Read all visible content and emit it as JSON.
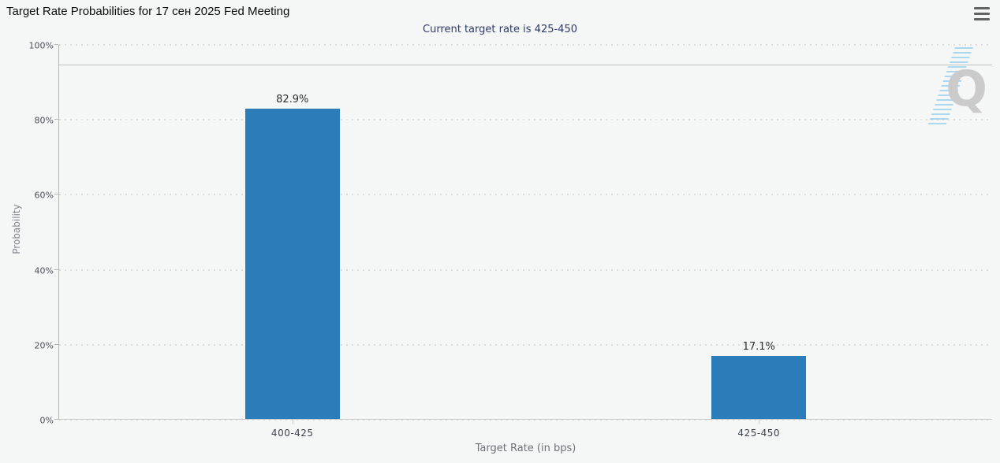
{
  "header": {
    "title": "Target Rate Probabilities for 17 сен 2025 Fed Meeting",
    "subtitle": "Current target rate is 425-450"
  },
  "toolbar": {
    "menu_icon": "hamburger-icon"
  },
  "watermark": {
    "letter": "Q"
  },
  "colors": {
    "bar": "#2a7db8",
    "subtitle_text": "#2c3a6d",
    "background": "#f5f6f6",
    "gridline": "#dcdcdc",
    "axis_line": "#b6b6b6",
    "watermark_q": "#cbcbcb",
    "watermark_stripes": "#84c7eb"
  },
  "chart_data": {
    "type": "bar",
    "title": "Target Rate Probabilities for 17 сен 2025 Fed Meeting",
    "subtitle": "Current target rate is 425-450",
    "categories": [
      "400-425",
      "425-450"
    ],
    "values": [
      82.9,
      17.1
    ],
    "value_labels": [
      "82.9%",
      "17.1%"
    ],
    "xlabel": "Target Rate (in bps)",
    "ylabel": "Probability",
    "ylim": [
      0,
      100
    ],
    "yticks": [
      "0%",
      "20%",
      "40%",
      "60%",
      "80%",
      "100%"
    ],
    "grid": "dotted horizontal gridlines every 20%",
    "legend": "none",
    "plotline_y": 94.5
  }
}
